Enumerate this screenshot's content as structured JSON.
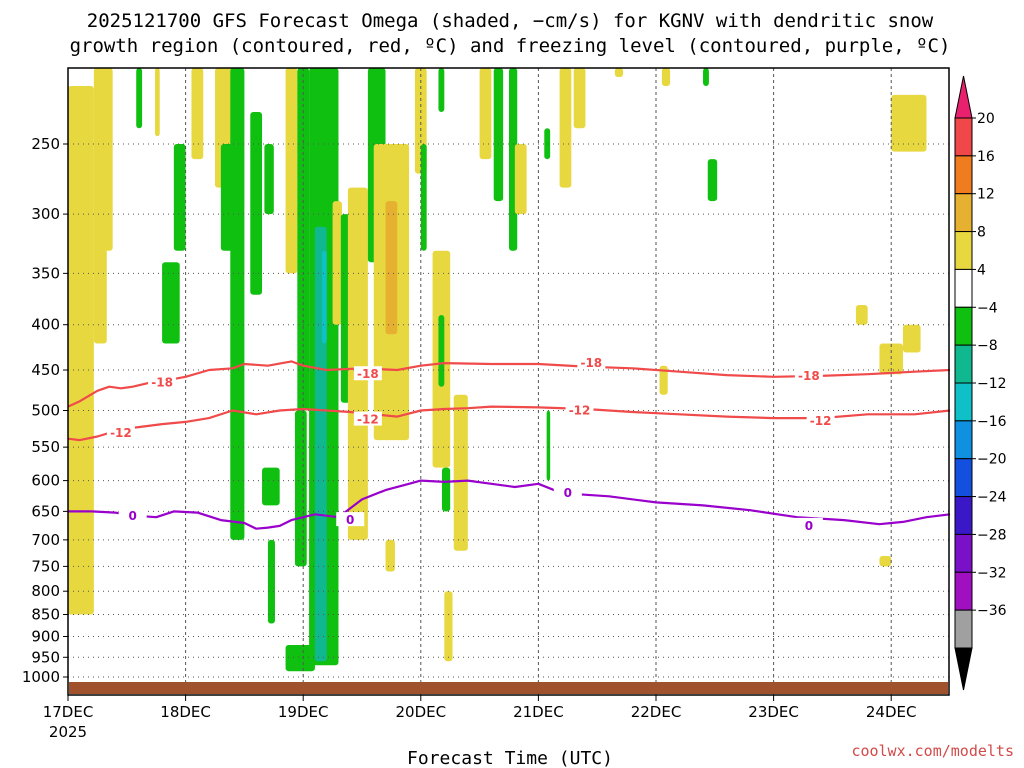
{
  "title": {
    "line1": "2025121700 GFS Forecast Omega (shaded, −cm/s) for KGNV with dendritic snow",
    "line2": "growth region (contoured, red, ºC) and freezing level (contoured, purple, ºC)"
  },
  "credit": "coolwx.com/modelts",
  "colors": {
    "dgz_contour": "#f04a4a",
    "freezing_contour": "#9a00cc",
    "ground": "#a0522d",
    "grid": "#555555"
  },
  "chart_data": {
    "type": "heatmap",
    "xlabel": "Forecast Time (UTC)",
    "x_ticks": [
      {
        "label": "17DEC",
        "sub": "2025"
      },
      {
        "label": "18DEC"
      },
      {
        "label": "19DEC"
      },
      {
        "label": "20DEC"
      },
      {
        "label": "21DEC"
      },
      {
        "label": "22DEC"
      },
      {
        "label": "23DEC"
      },
      {
        "label": "24DEC"
      }
    ],
    "x_range_days": [
      0,
      7.5
    ],
    "y_axis": {
      "scale": "log-pressure",
      "ticks": [
        250,
        300,
        350,
        400,
        450,
        500,
        550,
        600,
        650,
        700,
        750,
        800,
        850,
        900,
        950,
        1000
      ],
      "range_hpa": [
        200,
        1025
      ]
    },
    "grid": true,
    "colorbar": {
      "labels": [
        "20",
        "16",
        "12",
        "8",
        "4",
        "−4",
        "−8",
        "−12",
        "−16",
        "−20",
        "−24",
        "−28",
        "−32",
        "−36"
      ],
      "colors": [
        "#e8206e",
        "#f04848",
        "#f07c20",
        "#e6b030",
        "#e8d840",
        "#ffffff",
        "#10c010",
        "#10b890",
        "#10c0c8",
        "#1090e0",
        "#1450e0",
        "#3a18c8",
        "#7a10c8",
        "#a010c0",
        "#a0a0a0",
        "#000000"
      ]
    },
    "contours": [
      {
        "kind": "dgz",
        "value": -18,
        "label": "-18",
        "x_days": [
          0,
          0.1,
          0.25,
          0.35,
          0.45,
          0.55,
          0.7,
          0.85,
          1.0,
          1.2,
          1.4,
          1.5,
          1.7,
          1.9,
          2.0,
          2.2,
          2.5,
          2.8,
          3.0,
          3.2,
          3.6,
          4.0,
          4.4,
          4.8,
          5.2,
          5.6,
          6.0,
          6.4,
          6.8,
          7.2,
          7.5
        ],
        "y_hpa": [
          495,
          488,
          475,
          470,
          472,
          470,
          465,
          462,
          458,
          450,
          448,
          443,
          445,
          440,
          445,
          450,
          448,
          450,
          445,
          442,
          443,
          443,
          446,
          448,
          452,
          456,
          458,
          457,
          455,
          452,
          450
        ],
        "label_at": [
          [
            0.8,
            465
          ],
          [
            2.55,
            455
          ],
          [
            4.45,
            442
          ],
          [
            6.3,
            457
          ]
        ]
      },
      {
        "kind": "dgz",
        "value": -12,
        "label": "-12",
        "x_days": [
          0,
          0.1,
          0.25,
          0.45,
          0.6,
          0.8,
          1.0,
          1.2,
          1.4,
          1.6,
          1.8,
          2.0,
          2.2,
          2.4,
          2.6,
          2.8,
          3.0,
          3.2,
          3.4,
          3.6,
          4.0,
          4.4,
          4.8,
          5.2,
          5.6,
          6.0,
          6.4,
          6.8,
          7.2,
          7.5
        ],
        "y_hpa": [
          538,
          540,
          535,
          525,
          522,
          518,
          515,
          510,
          500,
          505,
          500,
          498,
          500,
          502,
          505,
          508,
          500,
          498,
          497,
          495,
          496,
          498,
          502,
          505,
          508,
          510,
          510,
          505,
          505,
          500
        ],
        "label_at": [
          [
            0.45,
            530
          ],
          [
            2.55,
            512
          ],
          [
            4.35,
            500
          ],
          [
            6.4,
            514
          ]
        ]
      },
      {
        "kind": "freezing",
        "value": 0,
        "label": "0",
        "x_days": [
          0,
          0.2,
          0.4,
          0.55,
          0.75,
          0.9,
          1.1,
          1.3,
          1.5,
          1.6,
          1.7,
          1.8,
          1.9,
          2.0,
          2.1,
          2.3,
          2.5,
          2.7,
          2.9,
          3.0,
          3.2,
          3.4,
          3.6,
          3.8,
          4.0,
          4.2,
          4.6,
          5.0,
          5.4,
          5.8,
          6.2,
          6.6,
          6.9,
          7.1,
          7.3,
          7.5
        ],
        "y_hpa": [
          650,
          650,
          652,
          657,
          660,
          650,
          652,
          665,
          670,
          680,
          678,
          675,
          665,
          660,
          655,
          660,
          630,
          615,
          605,
          600,
          602,
          600,
          605,
          610,
          605,
          620,
          625,
          635,
          640,
          648,
          660,
          665,
          672,
          668,
          660,
          655
        ],
        "label_at": [
          [
            0.55,
            658
          ],
          [
            2.4,
            665
          ],
          [
            4.25,
            620
          ],
          [
            6.3,
            675
          ]
        ]
      }
    ],
    "shaded_regions": [
      {
        "level": "4..8",
        "x": [
          0.0,
          0.22
        ],
        "p": [
          215,
          850
        ]
      },
      {
        "level": "4..8",
        "x": [
          0.22,
          0.33
        ],
        "p": [
          200,
          420
        ]
      },
      {
        "level": "4..8",
        "x": [
          0.28,
          0.38
        ],
        "p": [
          200,
          330
        ]
      },
      {
        "level": "-4..-8",
        "x": [
          0.58,
          0.63
        ],
        "p": [
          205,
          240
        ]
      },
      {
        "level": "4..8",
        "x": [
          0.74,
          0.78
        ],
        "p": [
          205,
          245
        ]
      },
      {
        "level": "-4..-8",
        "x": [
          0.8,
          0.95
        ],
        "p": [
          340,
          420
        ]
      },
      {
        "level": "-4..-8",
        "x": [
          0.9,
          1.0
        ],
        "p": [
          250,
          330
        ]
      },
      {
        "level": "4..8",
        "x": [
          1.05,
          1.15
        ],
        "p": [
          200,
          260
        ]
      },
      {
        "level": "4..8",
        "x": [
          1.25,
          1.45
        ],
        "p": [
          200,
          280
        ]
      },
      {
        "level": "-4..-8",
        "x": [
          1.3,
          1.45
        ],
        "p": [
          250,
          330
        ]
      },
      {
        "level": "-4..-8",
        "x": [
          1.38,
          1.5
        ],
        "p": [
          200,
          700
        ]
      },
      {
        "level": "-4..-8",
        "x": [
          1.55,
          1.65
        ],
        "p": [
          230,
          370
        ]
      },
      {
        "level": "-4..-8",
        "x": [
          1.67,
          1.75
        ],
        "p": [
          250,
          300
        ]
      },
      {
        "level": "-4..-8",
        "x": [
          1.65,
          1.8
        ],
        "p": [
          580,
          640
        ]
      },
      {
        "level": "-4..-8",
        "x": [
          1.7,
          1.76
        ],
        "p": [
          700,
          870
        ]
      },
      {
        "level": "4..8",
        "x": [
          1.85,
          1.95
        ],
        "p": [
          200,
          350
        ]
      },
      {
        "level": "-4..-8",
        "x": [
          1.85,
          2.1
        ],
        "p": [
          920,
          985
        ]
      },
      {
        "level": "-4..-8",
        "x": [
          1.95,
          2.05
        ],
        "p": [
          200,
          500
        ]
      },
      {
        "level": "-4..-8",
        "x": [
          1.93,
          2.03
        ],
        "p": [
          500,
          750
        ]
      },
      {
        "level": "-4..-8",
        "x": [
          2.05,
          2.3
        ],
        "p": [
          200,
          970
        ]
      },
      {
        "level": "-8..-12",
        "x": [
          2.1,
          2.2
        ],
        "p": [
          310,
          960
        ]
      },
      {
        "level": "-12..-16",
        "x": [
          2.16,
          2.2
        ],
        "p": [
          330,
          420
        ]
      },
      {
        "level": "4..8",
        "x": [
          2.25,
          2.33
        ],
        "p": [
          290,
          400
        ]
      },
      {
        "level": "-4..-8",
        "x": [
          2.32,
          2.4
        ],
        "p": [
          300,
          490
        ]
      },
      {
        "level": "4..8",
        "x": [
          2.38,
          2.55
        ],
        "p": [
          280,
          700
        ]
      },
      {
        "level": "-4..-8",
        "x": [
          2.55,
          2.7
        ],
        "p": [
          200,
          340
        ]
      },
      {
        "level": "4..8",
        "x": [
          2.6,
          2.9
        ],
        "p": [
          250,
          540
        ]
      },
      {
        "level": "8..12",
        "x": [
          2.7,
          2.8
        ],
        "p": [
          290,
          410
        ]
      },
      {
        "level": "4..8",
        "x": [
          2.95,
          3.05
        ],
        "p": [
          200,
          270
        ]
      },
      {
        "level": "-4..-8",
        "x": [
          3.0,
          3.05
        ],
        "p": [
          250,
          330
        ]
      },
      {
        "level": "4..8",
        "x": [
          3.1,
          3.25
        ],
        "p": [
          330,
          580
        ]
      },
      {
        "level": "-4..-8",
        "x": [
          3.15,
          3.2
        ],
        "p": [
          390,
          470
        ]
      },
      {
        "level": "4..8",
        "x": [
          3.28,
          3.4
        ],
        "p": [
          480,
          720
        ]
      },
      {
        "level": "-4..-8",
        "x": [
          3.18,
          3.25
        ],
        "p": [
          580,
          650
        ]
      },
      {
        "level": "4..8",
        "x": [
          2.7,
          2.78
        ],
        "p": [
          700,
          760
        ]
      },
      {
        "level": "4..8",
        "x": [
          3.2,
          3.27
        ],
        "p": [
          800,
          960
        ]
      },
      {
        "level": "-4..-8",
        "x": [
          3.15,
          3.2
        ],
        "p": [
          200,
          230
        ]
      },
      {
        "level": "4..8",
        "x": [
          3.5,
          3.6
        ],
        "p": [
          200,
          260
        ]
      },
      {
        "level": "-4..-8",
        "x": [
          3.62,
          3.7
        ],
        "p": [
          200,
          290
        ]
      },
      {
        "level": "-4..-8",
        "x": [
          3.75,
          3.82
        ],
        "p": [
          200,
          330
        ]
      },
      {
        "level": "4..8",
        "x": [
          3.8,
          3.9
        ],
        "p": [
          250,
          300
        ]
      },
      {
        "level": "-4..-8",
        "x": [
          4.05,
          4.1
        ],
        "p": [
          240,
          260
        ]
      },
      {
        "level": "-4..-8",
        "x": [
          4.07,
          4.1
        ],
        "p": [
          500,
          600
        ]
      },
      {
        "level": "4..8",
        "x": [
          4.18,
          4.28
        ],
        "p": [
          200,
          280
        ]
      },
      {
        "level": "4..8",
        "x": [
          4.3,
          4.4
        ],
        "p": [
          200,
          240
        ]
      },
      {
        "level": "4..8",
        "x": [
          4.65,
          4.72
        ],
        "p": [
          200,
          210
        ]
      },
      {
        "level": "4..8",
        "x": [
          5.05,
          5.12
        ],
        "p": [
          200,
          215
        ]
      },
      {
        "level": "-4..-8",
        "x": [
          5.4,
          5.45
        ],
        "p": [
          205,
          215
        ]
      },
      {
        "level": "-4..-8",
        "x": [
          5.44,
          5.52
        ],
        "p": [
          260,
          290
        ]
      },
      {
        "level": "4..8",
        "x": [
          5.03,
          5.1
        ],
        "p": [
          445,
          480
        ]
      },
      {
        "level": "4..8",
        "x": [
          7.0,
          7.3
        ],
        "p": [
          220,
          255
        ]
      },
      {
        "level": "4..8",
        "x": [
          6.7,
          6.8
        ],
        "p": [
          380,
          400
        ]
      },
      {
        "level": "4..8",
        "x": [
          6.9,
          7.1
        ],
        "p": [
          420,
          455
        ]
      },
      {
        "level": "4..8",
        "x": [
          7.1,
          7.25
        ],
        "p": [
          400,
          430
        ]
      },
      {
        "level": "4..8",
        "x": [
          6.9,
          7.0
        ],
        "p": [
          730,
          750
        ]
      }
    ]
  }
}
